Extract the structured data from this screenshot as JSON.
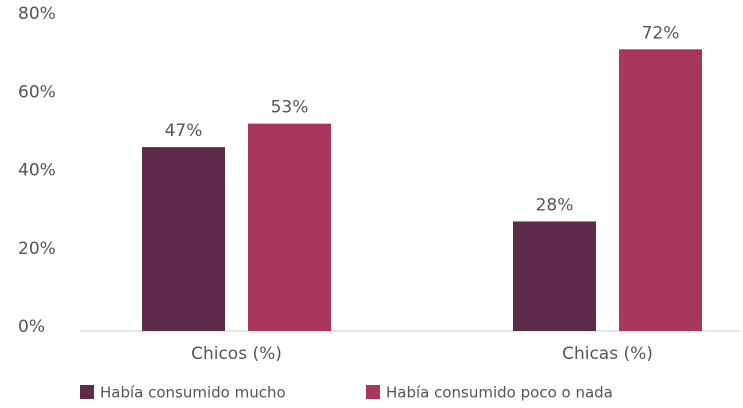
{
  "chart_data": {
    "type": "bar",
    "categories": [
      "Chicos (%)",
      "Chicas (%)"
    ],
    "series": [
      {
        "name": "Había consumido mucho",
        "color": "#5e2a4a",
        "values": [
          47,
          28
        ],
        "value_labels": [
          "47%",
          "28%"
        ]
      },
      {
        "name": "Había consumido poco o nada",
        "color": "#a8375b",
        "values": [
          53,
          72
        ],
        "value_labels": [
          "53%",
          "72%"
        ]
      }
    ],
    "ylim": [
      0,
      80
    ],
    "yticks": [
      {
        "value": 0,
        "label": "0%"
      },
      {
        "value": 20,
        "label": "20%"
      },
      {
        "value": 40,
        "label": "40%"
      },
      {
        "value": 60,
        "label": "60%"
      },
      {
        "value": 80,
        "label": "80%"
      }
    ],
    "grid": false,
    "legend": "bottom"
  }
}
